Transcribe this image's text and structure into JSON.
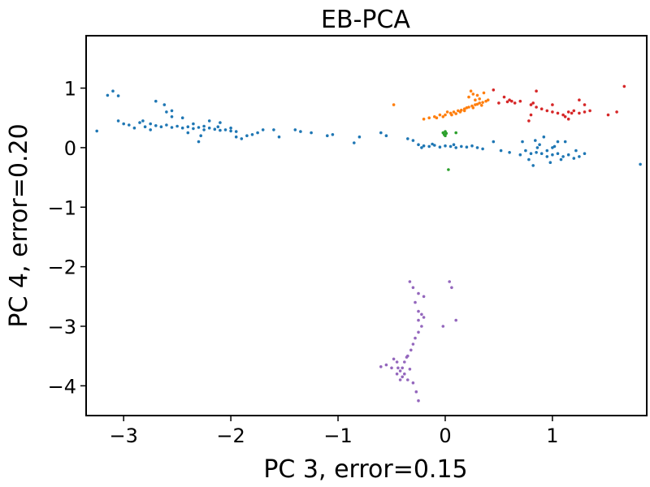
{
  "chart_data": {
    "type": "scatter",
    "title": "EB-PCA",
    "xlabel": "PC 3, error=0.15",
    "ylabel": "PC 4, error=0.20",
    "xlim": [
      -3.35,
      1.88
    ],
    "ylim": [
      -4.5,
      1.88
    ],
    "xticks": [
      -3,
      -2,
      -1,
      0,
      1
    ],
    "yticks": [
      1,
      0,
      -1,
      -2,
      -3,
      -4
    ],
    "xtick_labels": [
      "−3",
      "−2",
      "−1",
      "0",
      "1"
    ],
    "ytick_labels": [
      "1",
      "0",
      "−1",
      "−2",
      "−3",
      "−4"
    ],
    "grid": false,
    "series": [
      {
        "color": "#1f77b4",
        "points": [
          [
            -3.25,
            0.28
          ],
          [
            -3.1,
            0.95
          ],
          [
            -3.05,
            0.87
          ],
          [
            -3.15,
            0.88
          ],
          [
            -3.05,
            0.45
          ],
          [
            -3.0,
            0.4
          ],
          [
            -2.95,
            0.38
          ],
          [
            -2.9,
            0.33
          ],
          [
            -2.85,
            0.42
          ],
          [
            -2.8,
            0.35
          ],
          [
            -2.75,
            0.4
          ],
          [
            -2.7,
            0.37
          ],
          [
            -2.65,
            0.35
          ],
          [
            -2.6,
            0.38
          ],
          [
            -2.55,
            0.34
          ],
          [
            -2.5,
            0.36
          ],
          [
            -2.45,
            0.33
          ],
          [
            -2.4,
            0.35
          ],
          [
            -2.35,
            0.32
          ],
          [
            -2.3,
            0.34
          ],
          [
            -2.25,
            0.3
          ],
          [
            -2.2,
            0.33
          ],
          [
            -2.15,
            0.31
          ],
          [
            -2.1,
            0.29
          ],
          [
            -2.05,
            0.3
          ],
          [
            -2.0,
            0.28
          ],
          [
            -1.95,
            0.27
          ],
          [
            -2.55,
            0.62
          ],
          [
            -2.55,
            0.52
          ],
          [
            -2.45,
            0.5
          ],
          [
            -2.4,
            0.25
          ],
          [
            -2.3,
            0.1
          ],
          [
            -2.28,
            0.2
          ],
          [
            -2.2,
            0.45
          ],
          [
            -2.1,
            0.42
          ],
          [
            -1.95,
            0.18
          ],
          [
            -1.9,
            0.15
          ],
          [
            -1.85,
            0.2
          ],
          [
            -1.8,
            0.22
          ],
          [
            -1.75,
            0.25
          ],
          [
            -1.7,
            0.3
          ],
          [
            -1.6,
            0.3
          ],
          [
            -1.55,
            0.18
          ],
          [
            -1.4,
            0.3
          ],
          [
            -1.35,
            0.27
          ],
          [
            -1.25,
            0.25
          ],
          [
            -1.1,
            0.2
          ],
          [
            -1.05,
            0.22
          ],
          [
            -0.85,
            0.08
          ],
          [
            -0.8,
            0.18
          ],
          [
            -0.6,
            0.25
          ],
          [
            -0.55,
            0.2
          ],
          [
            -0.35,
            0.15
          ],
          [
            -0.3,
            0.12
          ],
          [
            -2.7,
            0.78
          ],
          [
            -2.62,
            0.72
          ],
          [
            -2.6,
            0.6
          ],
          [
            -2.35,
            0.4
          ],
          [
            -2.25,
            0.36
          ],
          [
            -2.12,
            0.35
          ],
          [
            -2.0,
            0.33
          ],
          [
            -2.75,
            0.3
          ],
          [
            -2.82,
            0.45
          ],
          [
            -0.25,
            0.05
          ],
          [
            -0.2,
            0.03
          ],
          [
            -0.15,
            0.02
          ],
          [
            -0.1,
            0.04
          ],
          [
            -0.05,
            0.01
          ],
          [
            0.0,
            0.03
          ],
          [
            0.05,
            0.02
          ],
          [
            0.1,
            0.0
          ],
          [
            0.15,
            0.02
          ],
          [
            0.2,
            0.01
          ],
          [
            0.25,
            0.03
          ],
          [
            0.3,
            0.0
          ],
          [
            0.35,
            -0.02
          ],
          [
            -0.22,
            0.0
          ],
          [
            -0.12,
            0.06
          ],
          [
            0.08,
            0.05
          ],
          [
            0.45,
            0.1
          ],
          [
            0.52,
            -0.05
          ],
          [
            0.6,
            -0.08
          ],
          [
            0.7,
            -0.12
          ],
          [
            0.75,
            -0.05
          ],
          [
            0.8,
            -0.1
          ],
          [
            0.85,
            -0.08
          ],
          [
            0.9,
            -0.1
          ],
          [
            0.95,
            -0.15
          ],
          [
            1.0,
            -0.12
          ],
          [
            1.05,
            -0.1
          ],
          [
            1.1,
            -0.15
          ],
          [
            1.15,
            -0.12
          ],
          [
            1.2,
            -0.18
          ],
          [
            1.25,
            -0.15
          ],
          [
            1.3,
            -0.1
          ],
          [
            0.72,
            0.1
          ],
          [
            0.78,
            -0.2
          ],
          [
            0.82,
            -0.3
          ],
          [
            0.88,
            0.05
          ],
          [
            0.98,
            -0.25
          ],
          [
            1.02,
            0.02
          ],
          [
            1.08,
            -0.2
          ],
          [
            1.12,
            0.1
          ],
          [
            1.22,
            -0.05
          ],
          [
            1.05,
            0.1
          ],
          [
            0.92,
            0.18
          ],
          [
            1.82,
            -0.28
          ],
          [
            0.84,
            0.12
          ],
          [
            0.86,
            0.0
          ],
          [
            1.0,
            0.0
          ],
          [
            0.95,
            -0.05
          ]
        ]
      },
      {
        "color": "#ff7f0e",
        "points": [
          [
            -0.48,
            0.72
          ],
          [
            -0.2,
            0.48
          ],
          [
            -0.15,
            0.5
          ],
          [
            -0.1,
            0.52
          ],
          [
            -0.05,
            0.55
          ],
          [
            0.0,
            0.55
          ],
          [
            0.05,
            0.58
          ],
          [
            0.08,
            0.6
          ],
          [
            0.12,
            0.62
          ],
          [
            0.15,
            0.63
          ],
          [
            0.18,
            0.65
          ],
          [
            0.2,
            0.67
          ],
          [
            0.22,
            0.68
          ],
          [
            0.25,
            0.7
          ],
          [
            0.28,
            0.72
          ],
          [
            0.3,
            0.73
          ],
          [
            0.32,
            0.75
          ],
          [
            0.35,
            0.76
          ],
          [
            0.38,
            0.78
          ],
          [
            0.4,
            0.8
          ],
          [
            0.02,
            0.6
          ],
          [
            0.1,
            0.57
          ],
          [
            0.18,
            0.62
          ],
          [
            0.26,
            0.67
          ],
          [
            0.34,
            0.71
          ],
          [
            0.24,
            0.95
          ],
          [
            0.26,
            0.9
          ],
          [
            0.3,
            0.88
          ],
          [
            0.32,
            0.82
          ],
          [
            0.36,
            0.92
          ],
          [
            0.28,
            0.8
          ],
          [
            0.22,
            0.85
          ],
          [
            -0.08,
            0.5
          ],
          [
            -0.02,
            0.52
          ],
          [
            0.06,
            0.55
          ],
          [
            0.14,
            0.6
          ]
        ]
      },
      {
        "color": "#2ca02c",
        "points": [
          [
            -0.02,
            0.25
          ],
          [
            0.0,
            0.27
          ],
          [
            -0.01,
            0.22
          ],
          [
            0.01,
            0.24
          ],
          [
            0.0,
            0.2
          ],
          [
            0.03,
            -0.37
          ],
          [
            0.1,
            0.25
          ]
        ]
      },
      {
        "color": "#d62728",
        "points": [
          [
            0.45,
            0.97
          ],
          [
            0.55,
            0.85
          ],
          [
            0.6,
            0.8
          ],
          [
            0.62,
            0.78
          ],
          [
            0.65,
            0.75
          ],
          [
            0.5,
            0.75
          ],
          [
            0.58,
            0.77
          ],
          [
            0.7,
            0.78
          ],
          [
            0.8,
            0.72
          ],
          [
            0.85,
            0.68
          ],
          [
            0.9,
            0.65
          ],
          [
            0.95,
            0.62
          ],
          [
            1.0,
            0.6
          ],
          [
            1.05,
            0.58
          ],
          [
            1.1,
            0.55
          ],
          [
            1.15,
            0.6
          ],
          [
            1.2,
            0.62
          ],
          [
            1.25,
            0.58
          ],
          [
            1.3,
            0.6
          ],
          [
            1.35,
            0.62
          ],
          [
            1.12,
            0.52
          ],
          [
            1.15,
            0.48
          ],
          [
            0.85,
            0.95
          ],
          [
            0.82,
            0.75
          ],
          [
            1.25,
            0.8
          ],
          [
            1.3,
            0.72
          ],
          [
            1.52,
            0.55
          ],
          [
            1.6,
            0.6
          ],
          [
            1.67,
            1.03
          ],
          [
            0.8,
            0.55
          ],
          [
            0.78,
            0.45
          ],
          [
            1.0,
            0.72
          ],
          [
            1.18,
            0.58
          ]
        ]
      },
      {
        "color": "#9467bd",
        "points": [
          [
            -0.33,
            -2.25
          ],
          [
            -0.3,
            -2.35
          ],
          [
            -0.25,
            -2.45
          ],
          [
            -0.2,
            -2.5
          ],
          [
            -0.28,
            -2.6
          ],
          [
            -0.25,
            -2.75
          ],
          [
            -0.22,
            -2.8
          ],
          [
            -0.25,
            -2.9
          ],
          [
            -0.22,
            -3.0
          ],
          [
            -0.25,
            -3.1
          ],
          [
            -0.28,
            -3.2
          ],
          [
            -0.3,
            -3.3
          ],
          [
            -0.32,
            -3.4
          ],
          [
            -0.35,
            -3.5
          ],
          [
            -0.38,
            -3.6
          ],
          [
            -0.4,
            -3.7
          ],
          [
            -0.42,
            -3.75
          ],
          [
            -0.45,
            -3.8
          ],
          [
            -0.4,
            -3.85
          ],
          [
            -0.35,
            -3.9
          ],
          [
            -0.3,
            -3.95
          ],
          [
            -0.5,
            -3.7
          ],
          [
            -0.55,
            -3.65
          ],
          [
            -0.6,
            -3.68
          ],
          [
            -0.48,
            -3.55
          ],
          [
            -0.45,
            -3.6
          ],
          [
            -0.38,
            -3.8
          ],
          [
            -0.42,
            -3.9
          ],
          [
            -0.27,
            -4.1
          ],
          [
            -0.25,
            -4.25
          ],
          [
            -0.2,
            -2.85
          ],
          [
            -0.02,
            -3.0
          ],
          [
            0.04,
            -2.25
          ],
          [
            0.06,
            -2.35
          ],
          [
            0.1,
            -2.9
          ],
          [
            -0.36,
            -3.52
          ],
          [
            -0.33,
            -3.72
          ],
          [
            -0.44,
            -3.7
          ]
        ]
      }
    ]
  }
}
